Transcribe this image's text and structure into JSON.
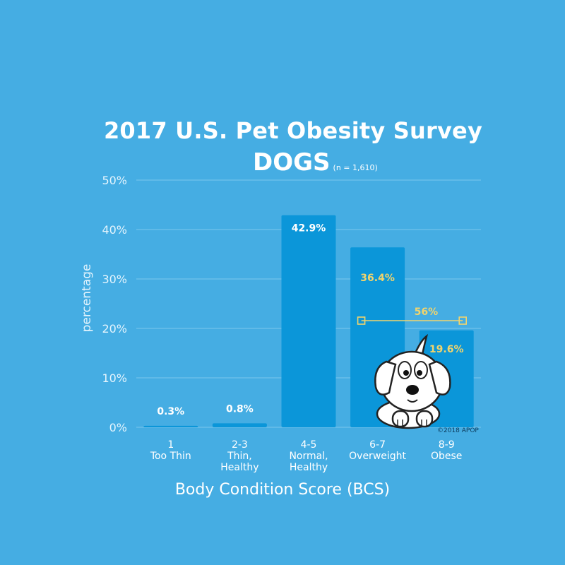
{
  "colors": {
    "background": "#45ade3",
    "bar": "#0b96d9",
    "grid": "#7ac8ee",
    "label_white": "#ffffff",
    "label_yellow": "#f2d46c"
  },
  "header": {
    "title": "2017 U.S. Pet Obesity Survey",
    "subtitle": "DOGS",
    "sample_note": "(n = 1,610)"
  },
  "bracket": {
    "label": "56%",
    "spans": [
      "6-7",
      "8-9"
    ]
  },
  "credit": "©2018 APOP",
  "mascot": {
    "icon": "cartoon-dog-icon"
  },
  "chart_data": {
    "type": "bar",
    "title": "2017 U.S. Pet Obesity Survey",
    "subtitle": "DOGS",
    "xlabel": "Body Condition Score (BCS)",
    "ylabel": "percentage",
    "ylim": [
      0,
      50
    ],
    "yticks": [
      "0%",
      "10%",
      "20%",
      "30%",
      "40%",
      "50%"
    ],
    "grid": true,
    "categories": [
      {
        "score": "1",
        "desc": [
          "Too Thin"
        ]
      },
      {
        "score": "2-3",
        "desc": [
          "Thin,",
          "Healthy"
        ]
      },
      {
        "score": "4-5",
        "desc": [
          "Normal,",
          "Healthy"
        ]
      },
      {
        "score": "6-7",
        "desc": [
          "Overweight"
        ]
      },
      {
        "score": "8-9",
        "desc": [
          "Obese"
        ]
      }
    ],
    "values": [
      0.3,
      0.8,
      42.9,
      36.4,
      19.6
    ],
    "data_labels": [
      "0.3%",
      "0.8%",
      "42.9%",
      "36.4%",
      "19.6%"
    ],
    "label_colors": [
      "white",
      "white",
      "white",
      "yellow",
      "yellow"
    ]
  }
}
